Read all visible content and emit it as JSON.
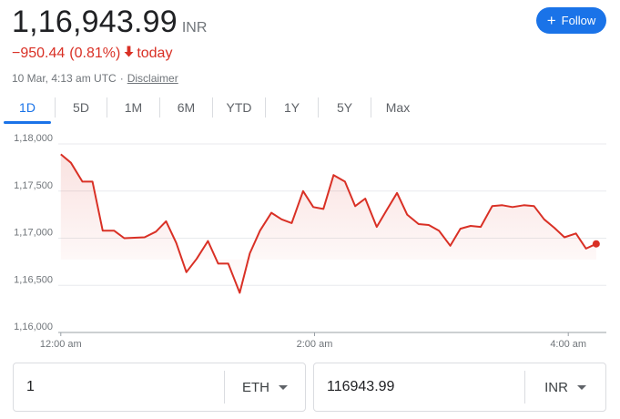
{
  "price": {
    "value": "1,16,943.99",
    "currency": "INR"
  },
  "change": {
    "amount": "−950.44",
    "percent": "(0.81%)",
    "period": "today",
    "direction": "down",
    "color": "#d93025"
  },
  "meta": {
    "timestamp": "10 Mar, 4:13 am UTC",
    "separator": "·",
    "disclaimer": "Disclaimer"
  },
  "follow": {
    "label": "Follow",
    "icon": "plus-icon"
  },
  "tabs": [
    {
      "label": "1D",
      "active": true
    },
    {
      "label": "5D",
      "active": false
    },
    {
      "label": "1M",
      "active": false
    },
    {
      "label": "6M",
      "active": false
    },
    {
      "label": "YTD",
      "active": false
    },
    {
      "label": "1Y",
      "active": false
    },
    {
      "label": "5Y",
      "active": false
    },
    {
      "label": "Max",
      "active": false
    }
  ],
  "chart_data": {
    "type": "line",
    "y_ticks": [
      "1,18,000",
      "1,17,500",
      "1,17,000",
      "1,16,500",
      "1,16,000"
    ],
    "ylim": [
      116000,
      118000
    ],
    "x_ticks": [
      "12:00 am",
      "2:00 am",
      "4:00 am"
    ],
    "x_tick_hours": [
      0,
      2,
      4
    ],
    "xlim": [
      -0.02,
      4.3
    ],
    "line_color": "#d93025",
    "grid": true,
    "points": [
      [
        0.0,
        117890
      ],
      [
        0.08,
        117800
      ],
      [
        0.17,
        117600
      ],
      [
        0.25,
        117600
      ],
      [
        0.33,
        117080
      ],
      [
        0.42,
        117080
      ],
      [
        0.5,
        117000
      ],
      [
        0.58,
        117005
      ],
      [
        0.66,
        117010
      ],
      [
        0.75,
        117070
      ],
      [
        0.83,
        117180
      ],
      [
        0.91,
        116950
      ],
      [
        0.99,
        116640
      ],
      [
        1.07,
        116780
      ],
      [
        1.16,
        116970
      ],
      [
        1.24,
        116730
      ],
      [
        1.32,
        116730
      ],
      [
        1.41,
        116420
      ],
      [
        1.49,
        116840
      ],
      [
        1.57,
        117080
      ],
      [
        1.66,
        117270
      ],
      [
        1.74,
        117200
      ],
      [
        1.82,
        117160
      ],
      [
        1.91,
        117500
      ],
      [
        1.99,
        117330
      ],
      [
        2.07,
        117310
      ],
      [
        2.15,
        117670
      ],
      [
        2.24,
        117600
      ],
      [
        2.32,
        117340
      ],
      [
        2.4,
        117420
      ],
      [
        2.49,
        117120
      ],
      [
        2.57,
        117300
      ],
      [
        2.65,
        117480
      ],
      [
        2.73,
        117250
      ],
      [
        2.82,
        117150
      ],
      [
        2.9,
        117140
      ],
      [
        2.98,
        117080
      ],
      [
        3.07,
        116920
      ],
      [
        3.15,
        117100
      ],
      [
        3.23,
        117130
      ],
      [
        3.31,
        117120
      ],
      [
        3.4,
        117340
      ],
      [
        3.48,
        117350
      ],
      [
        3.56,
        117330
      ],
      [
        3.65,
        117350
      ],
      [
        3.73,
        117340
      ],
      [
        3.81,
        117200
      ],
      [
        3.89,
        117110
      ],
      [
        3.97,
        117010
      ],
      [
        4.06,
        117050
      ],
      [
        4.14,
        116890
      ],
      [
        4.22,
        116940
      ]
    ]
  },
  "converter": {
    "from": {
      "value": "1",
      "unit": "ETH"
    },
    "to": {
      "value": "116943.99",
      "unit": "INR"
    }
  }
}
